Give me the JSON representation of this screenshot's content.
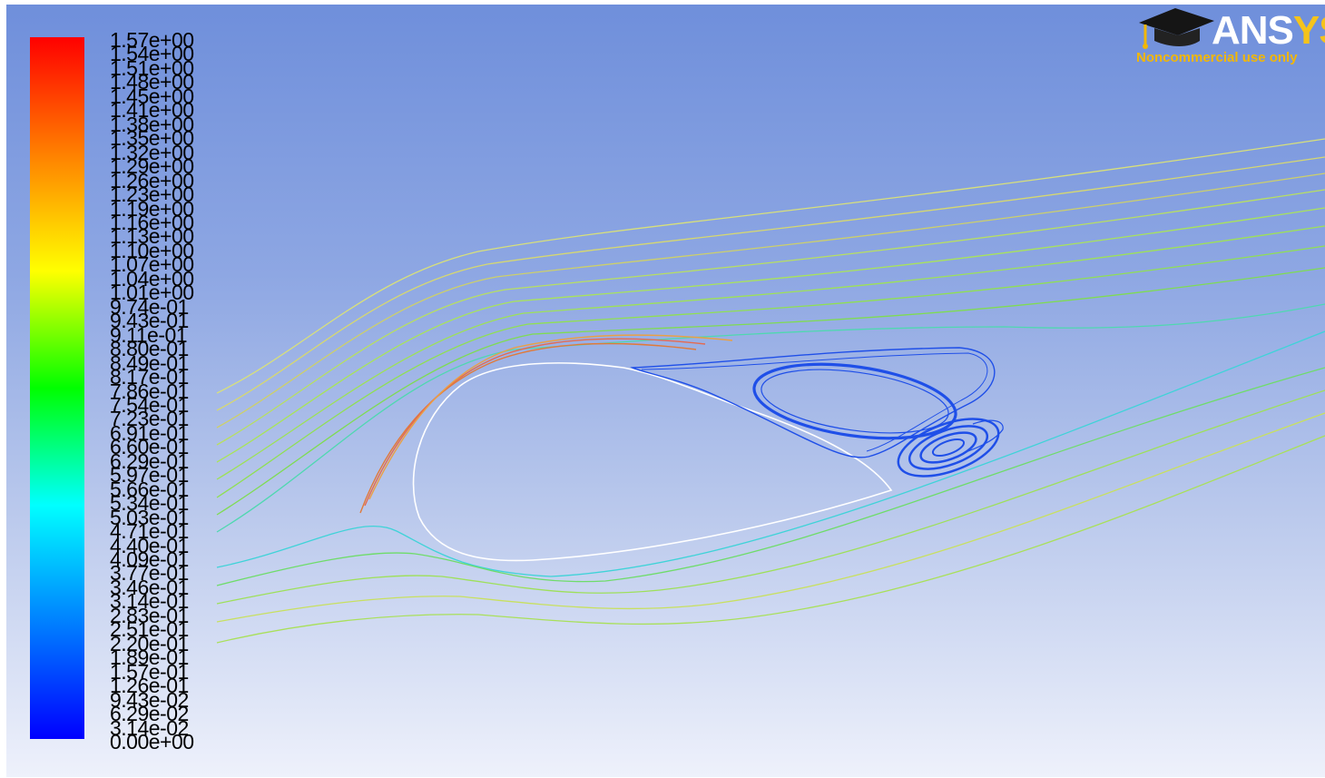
{
  "legend": {
    "colormap": [
      "#0000ff",
      "#0080ff",
      "#00ffff",
      "#00ff00",
      "#ffff00",
      "#ff8000",
      "#ff0000"
    ],
    "ticks": [
      "1.57e+00",
      "1.54e+00",
      "1.51e+00",
      "1.48e+00",
      "1.45e+00",
      "1.41e+00",
      "1.38e+00",
      "1.35e+00",
      "1.32e+00",
      "1.29e+00",
      "1.26e+00",
      "1.23e+00",
      "1.19e+00",
      "1.16e+00",
      "1.13e+00",
      "1.10e+00",
      "1.07e+00",
      "1.04e+00",
      "1.01e+00",
      "9.74e-01",
      "9.43e-01",
      "9.11e-01",
      "8.80e-01",
      "8.49e-01",
      "8.17e-01",
      "7.86e-01",
      "7.54e-01",
      "7.23e-01",
      "6.91e-01",
      "6.60e-01",
      "6.29e-01",
      "5.97e-01",
      "5.66e-01",
      "5.34e-01",
      "5.03e-01",
      "4.71e-01",
      "4.40e-01",
      "4.09e-01",
      "3.77e-01",
      "3.46e-01",
      "3.14e-01",
      "2.83e-01",
      "2.51e-01",
      "2.20e-01",
      "1.89e-01",
      "1.57e-01",
      "1.26e-01",
      "9.43e-02",
      "6.29e-02",
      "3.14e-02",
      "0.00e+00"
    ]
  },
  "logo": {
    "word_main": "ANS",
    "word_tail": "YS",
    "subtitle": "Noncommercial use only"
  },
  "colors": {
    "airfoil": "#ffffff",
    "vortex": "#1a45e0",
    "streamline_far": "#c8e26a",
    "streamline_mid": "#7fe04d",
    "streamline_fast": "#e07a3a"
  }
}
